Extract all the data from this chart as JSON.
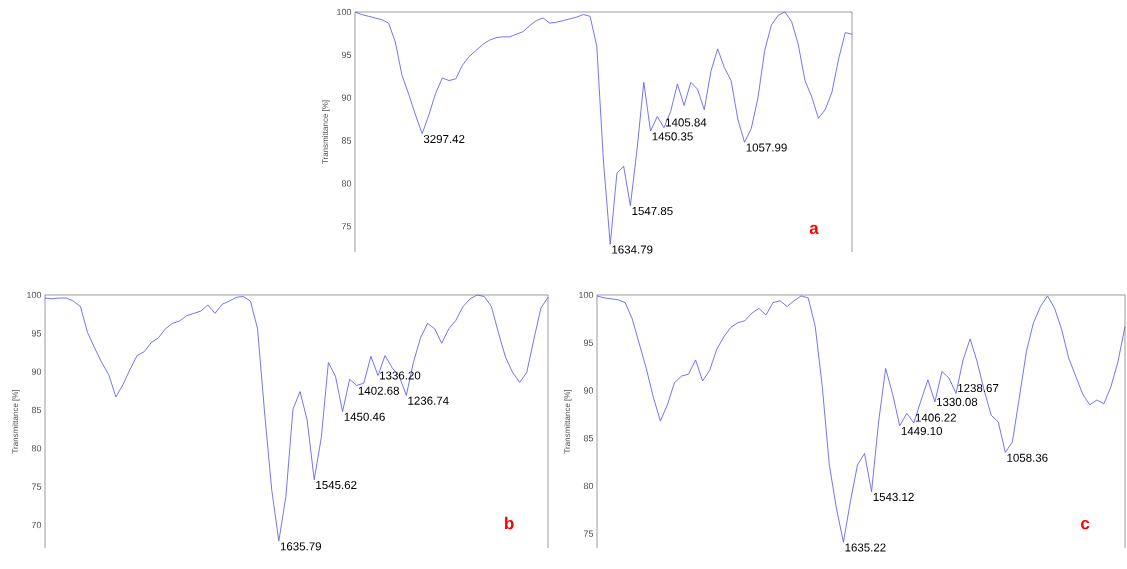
{
  "chart_data": [
    {
      "type": "line",
      "ylabel": "Transmittance [%]",
      "ylim": [
        72,
        100
      ],
      "yticks": [
        75,
        80,
        85,
        90,
        95,
        100
      ],
      "tick_labels": "y",
      "color": "#5050ff",
      "categories": [
        null,
        null,
        null,
        null,
        null,
        null,
        null,
        null,
        null,
        null,
        null,
        null,
        null,
        null,
        null,
        null,
        null,
        null,
        null,
        null,
        null,
        null,
        null,
        null,
        null,
        null,
        null,
        null,
        null,
        null,
        null,
        null,
        null,
        null,
        null,
        null,
        null,
        null,
        null,
        null,
        null,
        null,
        null,
        null,
        null,
        null,
        null,
        null,
        null,
        null,
        null,
        null,
        null,
        null,
        null,
        null,
        null,
        null,
        null,
        null,
        null,
        null,
        null,
        null,
        null,
        null,
        null,
        null,
        null,
        null,
        null,
        null,
        null,
        null,
        null
      ],
      "values": [
        100,
        99.7,
        99.5,
        99.3,
        99.1,
        98.7,
        96.5,
        92.6,
        90.4,
        88.0,
        85.8,
        88.0,
        90.5,
        92.3,
        92.0,
        92.2,
        93.8,
        94.8,
        95.5,
        96.2,
        96.7,
        97.0,
        97.1,
        97.1,
        97.4,
        97.7,
        98.4,
        99.0,
        99.3,
        98.7,
        98.8,
        99.0,
        99.2,
        99.4,
        99.7,
        99.5,
        96.0,
        82.5,
        72.9,
        81.2,
        82.0,
        77.4,
        84.0,
        91.8,
        86.1,
        87.8,
        86.5,
        88.4,
        91.6,
        89.1,
        91.8,
        91.0,
        88.6,
        93.1,
        95.7,
        93.5,
        92.0,
        87.5,
        84.8,
        86.4,
        90.0,
        95.5,
        98.5,
        99.6,
        100,
        98.9,
        96.2,
        92.0,
        90.1,
        87.6,
        88.6,
        90.6,
        94.5,
        97.6,
        97.4
      ],
      "annotations": [
        "3297.42",
        "1634.79",
        "1547.85",
        "1450.35",
        "1405.84",
        "1057.99",
        "a"
      ]
    },
    {
      "type": "line",
      "ylabel": "Transmittance [%]",
      "ylim": [
        67,
        100
      ],
      "yticks": [
        70,
        75,
        80,
        85,
        90,
        95,
        100
      ],
      "tick_labels": "y",
      "color": "#5050ff",
      "categories": [
        null,
        null,
        null,
        null,
        null,
        null,
        null,
        null,
        null,
        null,
        null,
        null,
        null,
        null,
        null,
        null,
        null,
        null,
        null,
        null,
        null,
        null,
        null,
        null,
        null,
        null,
        null,
        null,
        null,
        null,
        null,
        null,
        null,
        null,
        null,
        null,
        null,
        null,
        null,
        null,
        null,
        null,
        null,
        null,
        null,
        null,
        null,
        null,
        null,
        null,
        null,
        null,
        null,
        null,
        null,
        null,
        null,
        null,
        null,
        null,
        null,
        null,
        null,
        null,
        null,
        null,
        null,
        null,
        null,
        null,
        null,
        null
      ],
      "values": [
        99.6,
        99.5,
        99.6,
        99.6,
        99.2,
        98.5,
        95.1,
        93.1,
        91.2,
        89.6,
        86.7,
        88.3,
        90.3,
        92.1,
        92.6,
        93.8,
        94.4,
        95.6,
        96.3,
        96.6,
        97.3,
        97.6,
        97.9,
        98.7,
        97.6,
        98.8,
        99.2,
        99.7,
        99.8,
        99.2,
        95.6,
        84.6,
        74.6,
        67.9,
        73.7,
        85.1,
        87.4,
        83.7,
        75.9,
        81.4,
        91.2,
        89.4,
        84.8,
        89.0,
        88.2,
        88.5,
        92.0,
        89.5,
        92.1,
        90.5,
        89.4,
        86.9,
        91.2,
        94.4,
        96.3,
        95.6,
        93.7,
        95.6,
        96.7,
        98.5,
        99.5,
        100,
        99.8,
        98.5,
        95.1,
        91.9,
        89.9,
        88.6,
        89.9,
        94.2,
        98.3,
        99.7
      ],
      "annotations": [
        "1635.79",
        "1545.62",
        "1450.46",
        "1402.68",
        "1336.20",
        "1236.74",
        "b"
      ]
    },
    {
      "type": "line",
      "ylabel": "Transmittance [%]",
      "ylim": [
        73.5,
        100
      ],
      "yticks": [
        75,
        80,
        85,
        90,
        95,
        100
      ],
      "tick_labels": "y",
      "color": "#5050ff",
      "categories": [
        null,
        null,
        null,
        null,
        null,
        null,
        null,
        null,
        null,
        null,
        null,
        null,
        null,
        null,
        null,
        null,
        null,
        null,
        null,
        null,
        null,
        null,
        null,
        null,
        null,
        null,
        null,
        null,
        null,
        null,
        null,
        null,
        null,
        null,
        null,
        null,
        null,
        null,
        null,
        null,
        null,
        null,
        null,
        null,
        null,
        null,
        null,
        null,
        null,
        null,
        null,
        null,
        null,
        null,
        null,
        null,
        null,
        null,
        null,
        null,
        null,
        null,
        null,
        null,
        null,
        null,
        null,
        null,
        null,
        null,
        null,
        null,
        null,
        null,
        null,
        null
      ],
      "values": [
        99.9,
        99.7,
        99.6,
        99.5,
        99.2,
        97.5,
        94.9,
        92.3,
        89.3,
        86.8,
        88.5,
        90.8,
        91.5,
        91.7,
        93.2,
        91.0,
        92.1,
        94.3,
        95.6,
        96.6,
        97.1,
        97.3,
        98.1,
        98.6,
        97.9,
        99.2,
        99.4,
        98.8,
        99.4,
        99.9,
        99.7,
        96.7,
        90.4,
        82.2,
        77.7,
        74.1,
        78.4,
        82.2,
        83.4,
        79.4,
        86.7,
        92.3,
        89.6,
        86.3,
        87.6,
        86.6,
        88.9,
        91.1,
        88.8,
        92.0,
        91.3,
        89.7,
        93.2,
        95.4,
        93.0,
        90.0,
        87.4,
        86.7,
        83.5,
        84.6,
        89.3,
        94.1,
        97.1,
        98.8,
        99.9,
        98.6,
        96.4,
        93.4,
        91.5,
        89.6,
        88.5,
        89.0,
        88.6,
        90.4,
        93.0,
        96.7
      ],
      "annotations": [
        "1635.22",
        "1543.12",
        "1449.10",
        "1406.22",
        "1330.08",
        "1238.67",
        "1058.36",
        "c"
      ]
    }
  ]
}
